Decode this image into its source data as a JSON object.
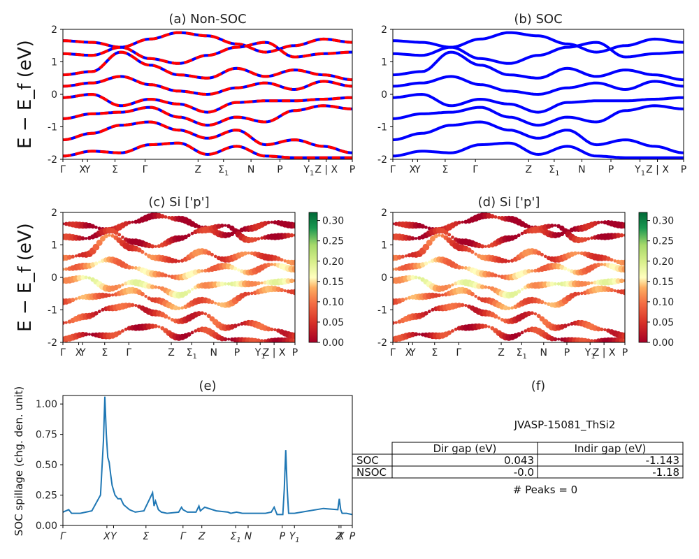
{
  "figure": {
    "ylabel_band": "E − E_f (eV)",
    "ylabel_spill": "SOC spillage (chg. den. unit)"
  },
  "k_ticks": {
    "labels": [
      "Γ",
      "X",
      "Y",
      "Σ",
      "Γ",
      "Z",
      "Σ1",
      "N",
      "P",
      "Y1",
      "Z | X",
      "P"
    ],
    "positions": [
      0.0,
      0.068,
      0.085,
      0.18,
      0.284,
      0.467,
      0.555,
      0.65,
      0.75,
      0.85,
      0.91,
      1.0
    ]
  },
  "spill_ticks": {
    "labels": [
      "Γ",
      "X",
      "Y",
      "Σ",
      "Γ",
      "Z",
      "Σ1",
      "N",
      "P",
      "Y1",
      "Z",
      "X",
      "P"
    ],
    "positions": [
      0.0,
      0.152,
      0.175,
      0.287,
      0.415,
      0.48,
      0.597,
      0.64,
      0.758,
      0.8,
      0.954,
      0.961,
      1.0
    ]
  },
  "chart_data": [
    {
      "id": "a",
      "type": "line",
      "title": "(a) Non-SOC",
      "ylim": [
        -2,
        2
      ],
      "yticks": [
        -2,
        -1,
        0,
        1,
        2
      ],
      "series": [
        {
          "color": "#0000ff",
          "style": "solid"
        },
        {
          "color": "#ff0000",
          "style": "dashed"
        }
      ],
      "bands": [
        [
          1.65,
          1.6,
          1.45,
          1.7,
          1.9,
          1.8,
          1.55,
          1.3,
          1.5,
          1.7,
          1.6
        ],
        [
          1.25,
          1.2,
          1.45,
          1.1,
          0.95,
          1.2,
          1.45,
          1.6,
          1.15,
          1.25,
          1.3
        ],
        [
          0.6,
          0.7,
          1.3,
          0.9,
          0.6,
          0.5,
          0.8,
          0.55,
          0.75,
          0.6,
          0.45
        ],
        [
          0.25,
          0.35,
          0.55,
          0.3,
          0.1,
          0.0,
          0.2,
          0.35,
          0.15,
          0.4,
          0.25
        ],
        [
          -0.1,
          0.0,
          -0.35,
          -0.15,
          -0.3,
          -0.55,
          -0.25,
          -0.2,
          -0.2,
          -0.15,
          -0.1
        ],
        [
          -0.75,
          -0.6,
          -0.55,
          -0.4,
          -0.7,
          -0.95,
          -0.7,
          -0.85,
          -0.5,
          -0.35,
          -0.45
        ],
        [
          -1.4,
          -1.2,
          -0.95,
          -0.85,
          -1.1,
          -1.35,
          -1.1,
          -1.55,
          -1.4,
          -1.6,
          -1.8
        ],
        [
          -1.9,
          -1.75,
          -1.8,
          -1.55,
          -1.5,
          -1.85,
          -1.6,
          -1.9,
          -1.95,
          -1.95,
          -1.95
        ]
      ]
    },
    {
      "id": "b",
      "type": "line",
      "title": "(b) SOC",
      "ylim": [
        -2,
        2
      ],
      "yticks": [
        -2,
        -1,
        0,
        1,
        2
      ],
      "series": [
        {
          "color": "#0000ff",
          "style": "solid"
        }
      ],
      "bands": [
        [
          1.65,
          1.6,
          1.45,
          1.7,
          1.9,
          1.8,
          1.55,
          1.3,
          1.5,
          1.7,
          1.6
        ],
        [
          1.25,
          1.2,
          1.45,
          1.1,
          0.95,
          1.2,
          1.45,
          1.6,
          1.15,
          1.25,
          1.3
        ],
        [
          0.6,
          0.7,
          1.3,
          0.9,
          0.6,
          0.5,
          0.8,
          0.55,
          0.75,
          0.6,
          0.45
        ],
        [
          0.25,
          0.35,
          0.55,
          0.3,
          0.1,
          0.0,
          0.2,
          0.35,
          0.15,
          0.4,
          0.25
        ],
        [
          -0.1,
          0.0,
          -0.35,
          -0.15,
          -0.3,
          -0.55,
          -0.25,
          -0.2,
          -0.2,
          -0.15,
          -0.1
        ],
        [
          -0.75,
          -0.6,
          -0.55,
          -0.4,
          -0.7,
          -0.95,
          -0.7,
          -0.85,
          -0.5,
          -0.35,
          -0.45
        ],
        [
          -1.4,
          -1.2,
          -0.95,
          -0.85,
          -1.1,
          -1.35,
          -1.1,
          -1.55,
          -1.4,
          -1.6,
          -1.8
        ],
        [
          -1.9,
          -1.75,
          -1.8,
          -1.55,
          -1.5,
          -1.85,
          -1.6,
          -1.9,
          -1.95,
          -1.95,
          -1.95
        ]
      ]
    },
    {
      "id": "c",
      "type": "scatter",
      "title": "(c)  Si ['p']",
      "ylim": [
        -2,
        2
      ],
      "yticks": [
        -2,
        -1,
        0,
        1,
        2
      ],
      "colorbar": {
        "min": 0.0,
        "max": 0.32,
        "ticks": [
          "0.00",
          "0.05",
          "0.10",
          "0.15",
          "0.20",
          "0.25",
          "0.30"
        ]
      },
      "weights": [
        0.01,
        0.03,
        0.08,
        0.12,
        0.15,
        0.1,
        0.06,
        0.04
      ]
    },
    {
      "id": "d",
      "type": "scatter",
      "title": "(d) Si ['p']",
      "ylim": [
        -2,
        2
      ],
      "yticks": [
        -2,
        -1,
        0,
        1,
        2
      ],
      "colorbar": {
        "min": 0.0,
        "max": 0.32,
        "ticks": [
          "0.00",
          "0.05",
          "0.10",
          "0.15",
          "0.20",
          "0.25",
          "0.30"
        ]
      },
      "weights": [
        0.01,
        0.03,
        0.08,
        0.12,
        0.15,
        0.1,
        0.06,
        0.04
      ]
    },
    {
      "id": "e",
      "type": "line",
      "title": "(e)",
      "ylabel": "SOC spillage (chg. den. unit)",
      "ylim": [
        0,
        1.07
      ],
      "yticks": [
        "0.00",
        "0.25",
        "0.50",
        "0.75",
        "1.00"
      ],
      "color": "#1f77b4",
      "x": [
        0.0,
        0.02,
        0.03,
        0.06,
        0.1,
        0.13,
        0.14,
        0.145,
        0.15,
        0.155,
        0.16,
        0.165,
        0.17,
        0.18,
        0.19,
        0.2,
        0.21,
        0.23,
        0.25,
        0.28,
        0.3,
        0.31,
        0.315,
        0.32,
        0.33,
        0.34,
        0.36,
        0.4,
        0.41,
        0.415,
        0.43,
        0.46,
        0.47,
        0.475,
        0.49,
        0.53,
        0.57,
        0.58,
        0.6,
        0.62,
        0.66,
        0.7,
        0.72,
        0.73,
        0.74,
        0.76,
        0.765,
        0.77,
        0.775,
        0.78,
        0.8,
        0.85,
        0.9,
        0.95,
        0.955,
        0.96,
        0.965,
        0.98,
        1.0
      ],
      "y": [
        0.11,
        0.13,
        0.1,
        0.1,
        0.12,
        0.25,
        0.7,
        1.06,
        0.75,
        0.56,
        0.52,
        0.42,
        0.33,
        0.25,
        0.22,
        0.22,
        0.17,
        0.13,
        0.11,
        0.12,
        0.22,
        0.27,
        0.16,
        0.2,
        0.13,
        0.11,
        0.1,
        0.11,
        0.15,
        0.13,
        0.11,
        0.11,
        0.16,
        0.12,
        0.15,
        0.12,
        0.11,
        0.1,
        0.11,
        0.1,
        0.1,
        0.1,
        0.11,
        0.15,
        0.09,
        0.09,
        0.3,
        0.62,
        0.3,
        0.1,
        0.1,
        0.12,
        0.14,
        0.13,
        0.22,
        0.13,
        0.1,
        0.1,
        0.09
      ]
    },
    {
      "id": "f",
      "type": "table",
      "title": "(f)",
      "subtitle": "JVASP-15081_ThSi2",
      "columns": [
        "Dir gap (eV)",
        "Indir gap (eV)"
      ],
      "rows": [
        {
          "label": "SOC",
          "values": [
            "0.043",
            "-1.143"
          ]
        },
        {
          "label": "NSOC",
          "values": [
            "-0.0",
            "-1.18"
          ]
        }
      ],
      "footer": "# Peaks = 0"
    }
  ]
}
